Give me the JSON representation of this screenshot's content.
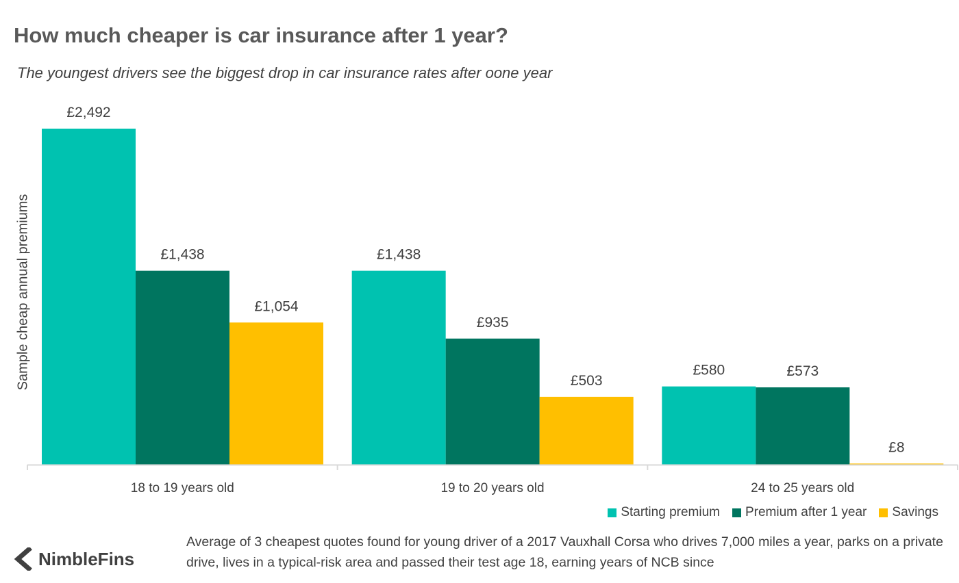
{
  "title": "How much cheaper is car insurance after 1 year?",
  "subtitle": "The youngest drivers see the biggest drop in car insurance rates after oone year",
  "footnote": "Average of 3 cheapest quotes found for young driver of a 2017 Vauxhall Corsa who drives 7,000 miles a year, parks on a private drive, lives in a typical-risk area and passed their test age 18, earning years of NCB since",
  "logo": {
    "text": "NimbleFins",
    "icon": "chevron-left-icon"
  },
  "colors": {
    "starting": "#00c2b0",
    "after": "#00755f",
    "savings": "#ffbf00"
  },
  "chart_data": {
    "type": "bar",
    "title": "How much cheaper is car insurance after 1 year?",
    "xlabel": "",
    "ylabel": "Sample cheap annual premiums",
    "categories": [
      "18 to 19 years old",
      "19 to 20 years old",
      "24 to 25 years old"
    ],
    "series": [
      {
        "name": "Starting premium",
        "values": [
          2492,
          1438,
          580
        ],
        "labels": [
          "£2,492",
          "£1,438",
          "£580"
        ]
      },
      {
        "name": "Premium after 1 year",
        "values": [
          1438,
          935,
          573
        ],
        "labels": [
          "£1,438",
          "£935",
          "£573"
        ]
      },
      {
        "name": "Savings",
        "values": [
          1054,
          503,
          8
        ],
        "labels": [
          "£1,054",
          "£503",
          "£8"
        ]
      }
    ],
    "ylim": [
      0,
      2492
    ],
    "grid": false,
    "legend": "bottom-right"
  }
}
